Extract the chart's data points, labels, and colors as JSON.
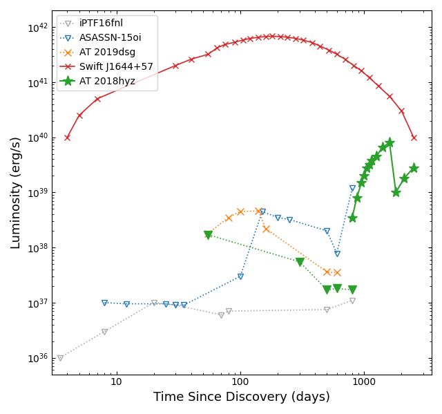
{
  "title": "",
  "xlabel": "Time Since Discovery (days)",
  "ylabel": "Luminosity (erg/s)",
  "xlim": [
    3,
    3500
  ],
  "ylim": [
    5e+35,
    2e+42
  ],
  "iPTF16fnl": {
    "color": "#aaaaaa",
    "x": [
      3.5,
      8,
      20,
      30,
      70,
      80,
      500,
      800
    ],
    "y": [
      1e+36,
      3e+36,
      1e+37,
      9e+36,
      6e+36,
      7e+36,
      7.5e+36,
      1.1e+37
    ],
    "marker": "v",
    "linestyle": "dotted",
    "fillstyle": "none",
    "label": "iPTF16fnl"
  },
  "ASASSN15oi": {
    "color": "#1f77b4",
    "x": [
      8,
      12,
      25,
      30,
      35,
      100,
      150,
      200,
      250,
      500,
      600,
      800
    ],
    "y": [
      1e+37,
      9.5e+36,
      9.5e+36,
      9e+36,
      9e+36,
      3e+37,
      4.5e+38,
      3.5e+38,
      3.2e+38,
      2e+38,
      7.8e+37,
      1.2e+39
    ],
    "marker": "v",
    "linestyle": "dotted",
    "fillstyle": "none",
    "label": "ASASSN-15oi"
  },
  "AT2019dsg": {
    "color": "#ff7f0e",
    "x": [
      55,
      80,
      100,
      140,
      160,
      500,
      600
    ],
    "y": [
      1.8e+38,
      3.5e+38,
      4.5e+38,
      4.6e+38,
      2.2e+38,
      3.6e+37,
      3.5e+37
    ],
    "marker": "x",
    "linestyle": "dotted",
    "label": "AT 2019dsg"
  },
  "SwiftJ1644": {
    "color": "#d62728",
    "x": [
      4,
      5,
      7,
      30,
      40,
      55,
      65,
      75,
      90,
      105,
      120,
      140,
      160,
      180,
      210,
      240,
      280,
      320,
      380,
      440,
      520,
      600,
      700,
      820,
      950,
      1100,
      1300,
      1600,
      2000,
      2500
    ],
    "y": [
      1e+40,
      2.5e+40,
      5e+40,
      2e+41,
      2.6e+41,
      3.2e+41,
      4.2e+41,
      4.8e+41,
      5.3e+41,
      5.8e+41,
      6.2e+41,
      6.5e+41,
      6.7e+41,
      6.8e+41,
      6.7e+41,
      6.5e+41,
      6.2e+41,
      5.8e+41,
      5.2e+41,
      4.5e+41,
      3.8e+41,
      3.2e+41,
      2.6e+41,
      2e+41,
      1.6e+41,
      1.2e+41,
      8.5e+40,
      5.5e+40,
      3e+40,
      1e+40
    ],
    "marker": "x",
    "linestyle": "solid",
    "label": "Swift J1644+57"
  },
  "AT2018hyz_stars": {
    "color": "#2ca02c",
    "x": [
      800,
      870,
      950,
      1000,
      1050,
      1100,
      1150,
      1250,
      1400,
      1600,
      1800,
      2100,
      2500
    ],
    "y": [
      3.5e+38,
      8e+38,
      1.5e+39,
      2e+39,
      2.8e+39,
      3.2e+39,
      3.8e+39,
      4.5e+39,
      6.5e+39,
      8e+39,
      1e+39,
      1.8e+39,
      2.8e+39
    ],
    "marker": "*",
    "linestyle": "solid",
    "label": "AT 2018hyz",
    "markersize": 11
  },
  "AT2018hyz_triangles": {
    "color": "#2ca02c",
    "x": [
      55,
      300,
      500,
      600,
      800
    ],
    "y": [
      1.7e+38,
      5.5e+37,
      1.7e+37,
      1.8e+37,
      1.7e+37
    ],
    "marker": "v",
    "linestyle": "dotted",
    "fillstyle": "full",
    "markersize": 8
  }
}
